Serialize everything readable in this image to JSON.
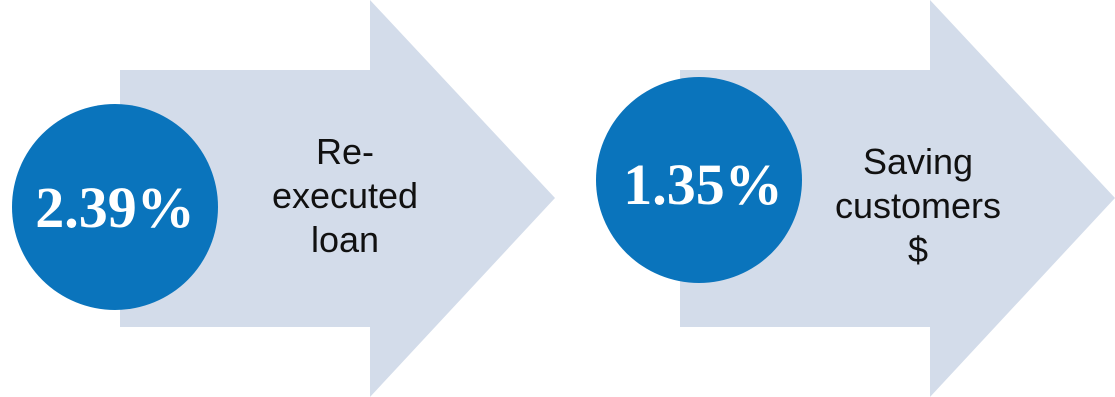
{
  "colors": {
    "arrow_fill": "#d3dcea",
    "circle_fill": "#0a74bc",
    "circle_text": "#ffffff",
    "label_text": "#111111"
  },
  "steps": [
    {
      "value": "2.39%",
      "label_lines": [
        "Re-",
        "executed",
        "loan"
      ]
    },
    {
      "value": "1.35%",
      "label_lines": [
        "Saving",
        "customers",
        "$"
      ]
    }
  ]
}
